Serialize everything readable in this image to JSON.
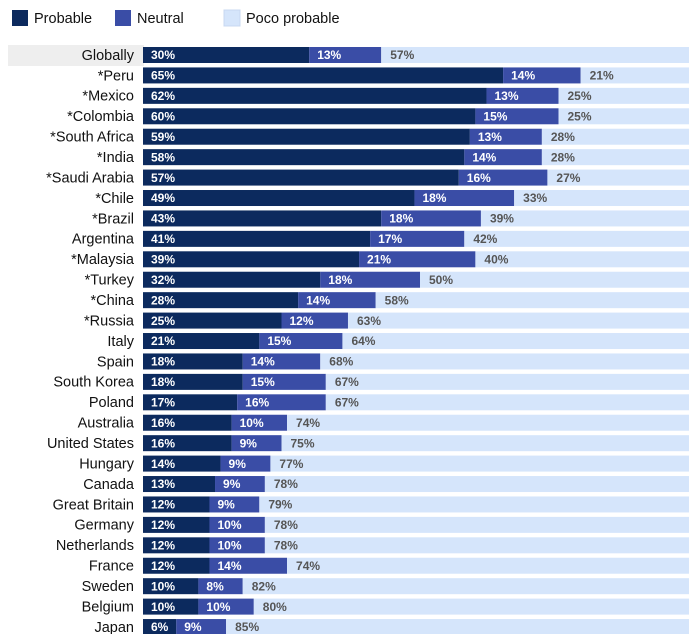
{
  "chart_data": {
    "type": "stacked-bar-horizontal",
    "categories": [
      "Globally",
      "*Peru",
      "*Mexico",
      "*Colombia",
      "*South Africa",
      "*India",
      "*Saudi Arabia",
      "*Chile",
      "*Brazil",
      "Argentina",
      "*Malaysia",
      "*Turkey",
      "*China",
      "*Russia",
      "Italy",
      "Spain",
      "South Korea",
      "Poland",
      "Australia",
      "United States",
      "Hungary",
      "Canada",
      "Great Britain",
      "Germany",
      "Netherlands",
      "France",
      "Sweden",
      "Belgium",
      "Japan"
    ],
    "series": [
      {
        "name": "Probable",
        "color": "#0c2a5e",
        "values": [
          30,
          65,
          62,
          60,
          59,
          58,
          57,
          49,
          43,
          41,
          39,
          32,
          28,
          25,
          21,
          18,
          18,
          17,
          16,
          16,
          14,
          13,
          12,
          12,
          12,
          12,
          10,
          10,
          6
        ],
        "value_labels": [
          "30%",
          "65%",
          "62%",
          "60%",
          "59%",
          "58%",
          "57%",
          "49%",
          "43%",
          "41%",
          "39%",
          "32%",
          "28%",
          "25%",
          "21%",
          "18%",
          "18%",
          "17%",
          "16%",
          "16%",
          "14%",
          "13%",
          "12%",
          "12%",
          "12%",
          "12%",
          "10%",
          "10%",
          "6%"
        ]
      },
      {
        "name": "Neutral",
        "color": "#3a4da6",
        "values": [
          13,
          14,
          13,
          15,
          13,
          14,
          16,
          18,
          18,
          17,
          21,
          18,
          14,
          12,
          15,
          14,
          15,
          16,
          10,
          9,
          9,
          9,
          9,
          10,
          10,
          14,
          8,
          10,
          9
        ],
        "value_labels": [
          "13%",
          "14%",
          "13%",
          "15%",
          "13%",
          "14%",
          "16%",
          "18%",
          "18%",
          "17%",
          "21%",
          "18%",
          "14%",
          "12%",
          "15%",
          "14%",
          "15%",
          "16%",
          "10%",
          "9%",
          "9%",
          "9%",
          "9%",
          "10%",
          "10%",
          "14%",
          "8%",
          "10%",
          "9%"
        ]
      },
      {
        "name": "Poco probable",
        "color": "#d5e5fb",
        "values": [
          57,
          21,
          25,
          25,
          28,
          28,
          27,
          33,
          39,
          42,
          40,
          50,
          58,
          63,
          64,
          68,
          67,
          67,
          74,
          75,
          77,
          78,
          79,
          78,
          78,
          74,
          82,
          80,
          85
        ],
        "value_labels": [
          "57%",
          "21%",
          "25%",
          "25%",
          "28%",
          "28%",
          "27%",
          "33%",
          "39%",
          "42%",
          "40%",
          "50%",
          "58%",
          "63%",
          "64%",
          "68%",
          "67%",
          "67%",
          "74%",
          "75%",
          "77%",
          "78%",
          "79%",
          "78%",
          "78%",
          "74%",
          "82%",
          "80%",
          "85%"
        ]
      }
    ],
    "xlim": [
      0,
      100
    ]
  }
}
